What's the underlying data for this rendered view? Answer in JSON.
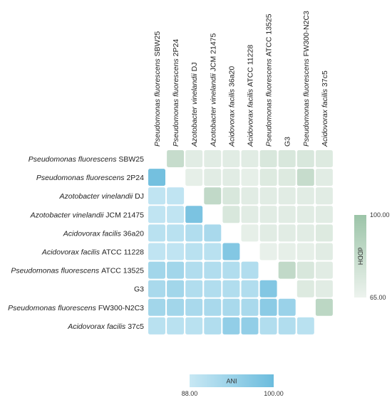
{
  "chart_data": {
    "type": "heatmap",
    "taxa": [
      {
        "name": "Pseudomonas fluorescens",
        "suffix": "SBW25"
      },
      {
        "name": "Pseudomonas fluorescens",
        "suffix": "2P24"
      },
      {
        "name": "Azotobacter vinelandii",
        "suffix": "DJ"
      },
      {
        "name": "Azotobacter vinelandii",
        "suffix": "JCM 21475"
      },
      {
        "name": "Acidovorax facilis",
        "suffix": " 36a20"
      },
      {
        "name": "Acidovorax facilis",
        "suffix": "ATCC 11228"
      },
      {
        "name": "Pseudomonas fluorescens",
        "suffix": " ATCC 13525"
      },
      {
        "name": "",
        "suffix": "G3"
      },
      {
        "name": "Pseudomonas fluorescens",
        "suffix": " FW300-N2C3"
      },
      {
        "name": "Acidovorax facilis",
        "suffix": " 37c5"
      }
    ],
    "note": "Upper triangle = dDDH (green scale), lower triangle = ANI (blue scale); diagonal empty",
    "matrix": [
      [
        null,
        82,
        70,
        70,
        70,
        70,
        74,
        74,
        74,
        72
      ],
      [
        99,
        null,
        68,
        70,
        70,
        68,
        72,
        72,
        82,
        70
      ],
      [
        89,
        89,
        null,
        84,
        74,
        70,
        70,
        70,
        70,
        70
      ],
      [
        89,
        89,
        98,
        null,
        74,
        70,
        70,
        70,
        70,
        70
      ],
      [
        90,
        90,
        91,
        92,
        null,
        68,
        70,
        70,
        70,
        72
      ],
      [
        89,
        89,
        90,
        90,
        97,
        null,
        67,
        68,
        68,
        70
      ],
      [
        93,
        93,
        91,
        91,
        91,
        91,
        null,
        84,
        74,
        70
      ],
      [
        92,
        93,
        91,
        91,
        91,
        91,
        97,
        null,
        72,
        70
      ],
      [
        93,
        93,
        92,
        92,
        92,
        92,
        96,
        94,
        null,
        86
      ],
      [
        90,
        90,
        90,
        91,
        95,
        95,
        91,
        91,
        90,
        null
      ]
    ],
    "legends": {
      "ani": {
        "label": "ANI",
        "min": "88.00",
        "max": "100.00",
        "min_value": 88,
        "max_value": 100,
        "color_low": "#c8e8f4",
        "color_high": "#6cbcdd"
      },
      "dddh": {
        "label": "dDDH",
        "min": "65.00",
        "max": "100.00",
        "min_value": 65,
        "max_value": 100,
        "color_low": "#edf3ee",
        "color_high": "#9cc4a8"
      }
    }
  }
}
